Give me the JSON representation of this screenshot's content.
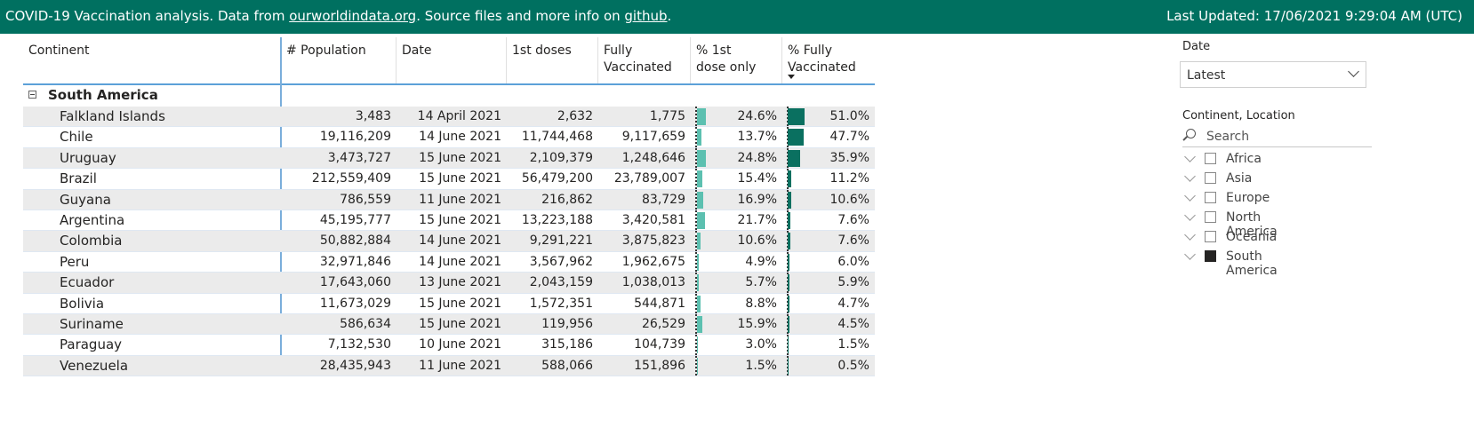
{
  "header": {
    "text_prefix": "COVID-19 Vaccination analysis. Data from ",
    "link1": "ourworldindata.org",
    "text_mid": ". Source files and more info on ",
    "link2": "github",
    "text_end": ".",
    "last_updated": "Last Updated: 17/06/2021 9:29:04 AM (UTC)",
    "bg_color": "#007060"
  },
  "table": {
    "columns": [
      "Continent",
      "# Population",
      "Date",
      "1st doses",
      "Fully Vaccinated",
      "% 1st dose only",
      "% Fully Vaccinated"
    ],
    "sorted_column": "% Fully Vaccinated",
    "group": "South America",
    "rows": [
      {
        "location": "Falkland Islands",
        "population": "3,483",
        "date": "14 April 2021",
        "first": "2,632",
        "full": "1,775",
        "pct_first": "24.6%",
        "pct_full": "51.0%",
        "pf1": 24.6,
        "pf2": 51.0
      },
      {
        "location": "Chile",
        "population": "19,116,209",
        "date": "14 June 2021",
        "first": "11,744,468",
        "full": "9,117,659",
        "pct_first": "13.7%",
        "pct_full": "47.7%",
        "pf1": 13.7,
        "pf2": 47.7
      },
      {
        "location": "Uruguay",
        "population": "3,473,727",
        "date": "15 June 2021",
        "first": "2,109,379",
        "full": "1,248,646",
        "pct_first": "24.8%",
        "pct_full": "35.9%",
        "pf1": 24.8,
        "pf2": 35.9
      },
      {
        "location": "Brazil",
        "population": "212,559,409",
        "date": "15 June 2021",
        "first": "56,479,200",
        "full": "23,789,007",
        "pct_first": "15.4%",
        "pct_full": "11.2%",
        "pf1": 15.4,
        "pf2": 11.2
      },
      {
        "location": "Guyana",
        "population": "786,559",
        "date": "11 June 2021",
        "first": "216,862",
        "full": "83,729",
        "pct_first": "16.9%",
        "pct_full": "10.6%",
        "pf1": 16.9,
        "pf2": 10.6
      },
      {
        "location": "Argentina",
        "population": "45,195,777",
        "date": "15 June 2021",
        "first": "13,223,188",
        "full": "3,420,581",
        "pct_first": "21.7%",
        "pct_full": "7.6%",
        "pf1": 21.7,
        "pf2": 7.6
      },
      {
        "location": "Colombia",
        "population": "50,882,884",
        "date": "14 June 2021",
        "first": "9,291,221",
        "full": "3,875,823",
        "pct_first": "10.6%",
        "pct_full": "7.6%",
        "pf1": 10.6,
        "pf2": 7.6
      },
      {
        "location": "Peru",
        "population": "32,971,846",
        "date": "14 June 2021",
        "first": "3,567,962",
        "full": "1,962,675",
        "pct_first": "4.9%",
        "pct_full": "6.0%",
        "pf1": 4.9,
        "pf2": 6.0
      },
      {
        "location": "Ecuador",
        "population": "17,643,060",
        "date": "13 June 2021",
        "first": "2,043,159",
        "full": "1,038,013",
        "pct_first": "5.7%",
        "pct_full": "5.9%",
        "pf1": 5.7,
        "pf2": 5.9
      },
      {
        "location": "Bolivia",
        "population": "11,673,029",
        "date": "15 June 2021",
        "first": "1,572,351",
        "full": "544,871",
        "pct_first": "8.8%",
        "pct_full": "4.7%",
        "pf1": 8.8,
        "pf2": 4.7
      },
      {
        "location": "Suriname",
        "population": "586,634",
        "date": "15 June 2021",
        "first": "119,956",
        "full": "26,529",
        "pct_first": "15.9%",
        "pct_full": "4.5%",
        "pf1": 15.9,
        "pf2": 4.5
      },
      {
        "location": "Paraguay",
        "population": "7,132,530",
        "date": "10 June 2021",
        "first": "315,186",
        "full": "104,739",
        "pct_first": "3.0%",
        "pct_full": "1.5%",
        "pf1": 3.0,
        "pf2": 1.5
      },
      {
        "location": "Venezuela",
        "population": "28,435,943",
        "date": "11 June 2021",
        "first": "588,066",
        "full": "151,896",
        "pct_first": "1.5%",
        "pct_full": "0.5%",
        "pf1": 1.5,
        "pf2": 0.5
      }
    ]
  },
  "date_slicer": {
    "title": "Date",
    "value": "Latest"
  },
  "location_slicer": {
    "title": "Continent, Location",
    "search_placeholder": "Search",
    "items": [
      {
        "label": "Africa",
        "checked": false
      },
      {
        "label": "Asia",
        "checked": false
      },
      {
        "label": "Europe",
        "checked": false
      },
      {
        "label": "North America",
        "checked": false
      },
      {
        "label": "Oceania",
        "checked": false
      },
      {
        "label": "South America",
        "checked": true
      }
    ]
  }
}
